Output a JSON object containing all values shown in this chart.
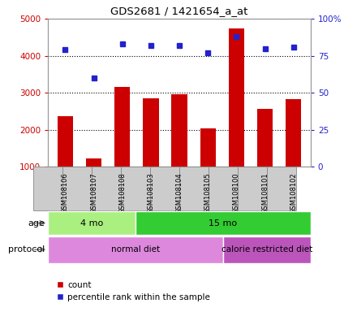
{
  "title": "GDS2681 / 1421654_a_at",
  "samples": [
    "GSM108106",
    "GSM108107",
    "GSM108108",
    "GSM108103",
    "GSM108104",
    "GSM108105",
    "GSM108100",
    "GSM108101",
    "GSM108102"
  ],
  "counts": [
    2370,
    1220,
    3160,
    2850,
    2970,
    2030,
    4730,
    2560,
    2830
  ],
  "percentile_ranks": [
    79,
    60,
    83,
    82,
    82,
    77,
    88,
    80,
    81
  ],
  "ylim_left": [
    1000,
    5000
  ],
  "ylim_right": [
    0,
    100
  ],
  "yticks_left": [
    1000,
    2000,
    3000,
    4000,
    5000
  ],
  "yticks_right": [
    0,
    25,
    50,
    75,
    100
  ],
  "ytick_right_labels": [
    "0",
    "25",
    "50",
    "75",
    "100%"
  ],
  "bar_color": "#cc0000",
  "dot_color": "#2222cc",
  "bar_width": 0.55,
  "age_groups": [
    {
      "label": "4 mo",
      "start": 0,
      "end": 3,
      "color": "#aaf080"
    },
    {
      "label": "15 mo",
      "start": 3,
      "end": 9,
      "color": "#33cc33"
    }
  ],
  "protocol_groups": [
    {
      "label": "normal diet",
      "start": 0,
      "end": 6,
      "color": "#dd88dd"
    },
    {
      "label": "calorie restricted diet",
      "start": 6,
      "end": 9,
      "color": "#bb55bb"
    }
  ],
  "legend_items": [
    {
      "label": "count",
      "color": "#cc0000"
    },
    {
      "label": "percentile rank within the sample",
      "color": "#2222cc"
    }
  ],
  "label_age": "age",
  "label_protocol": "protocol",
  "left_tick_color": "#cc0000",
  "right_tick_color": "#2222cc",
  "background_color": "#ffffff",
  "plot_bg_color": "#ffffff",
  "label_box_color": "#cccccc",
  "label_box_edge": "#888888"
}
